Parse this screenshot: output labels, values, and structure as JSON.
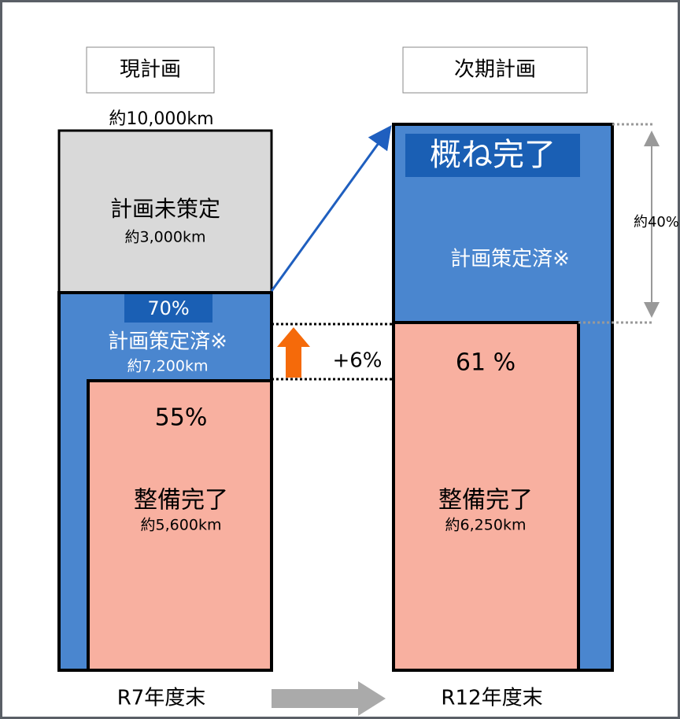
{
  "headers": {
    "current": "現計画",
    "next": "次期計画"
  },
  "current": {
    "total": "約10,000km",
    "unplanned": {
      "label": "計画未策定",
      "length": "約3,000km"
    },
    "planned": {
      "rate": "70%",
      "label": "計画策定済※",
      "length": "約7,200km"
    },
    "done": {
      "rate": "55%",
      "label": "整備完了",
      "length": "約5,600km"
    },
    "period": "R7年度末"
  },
  "next": {
    "badge": "概ね完了",
    "planned": {
      "label": "計画策定済※",
      "share": "約40%"
    },
    "done": {
      "rate": "61 %",
      "label": "整備完了",
      "length": "約6,250km"
    },
    "period": "R12年度末"
  },
  "increase": "+6%"
}
